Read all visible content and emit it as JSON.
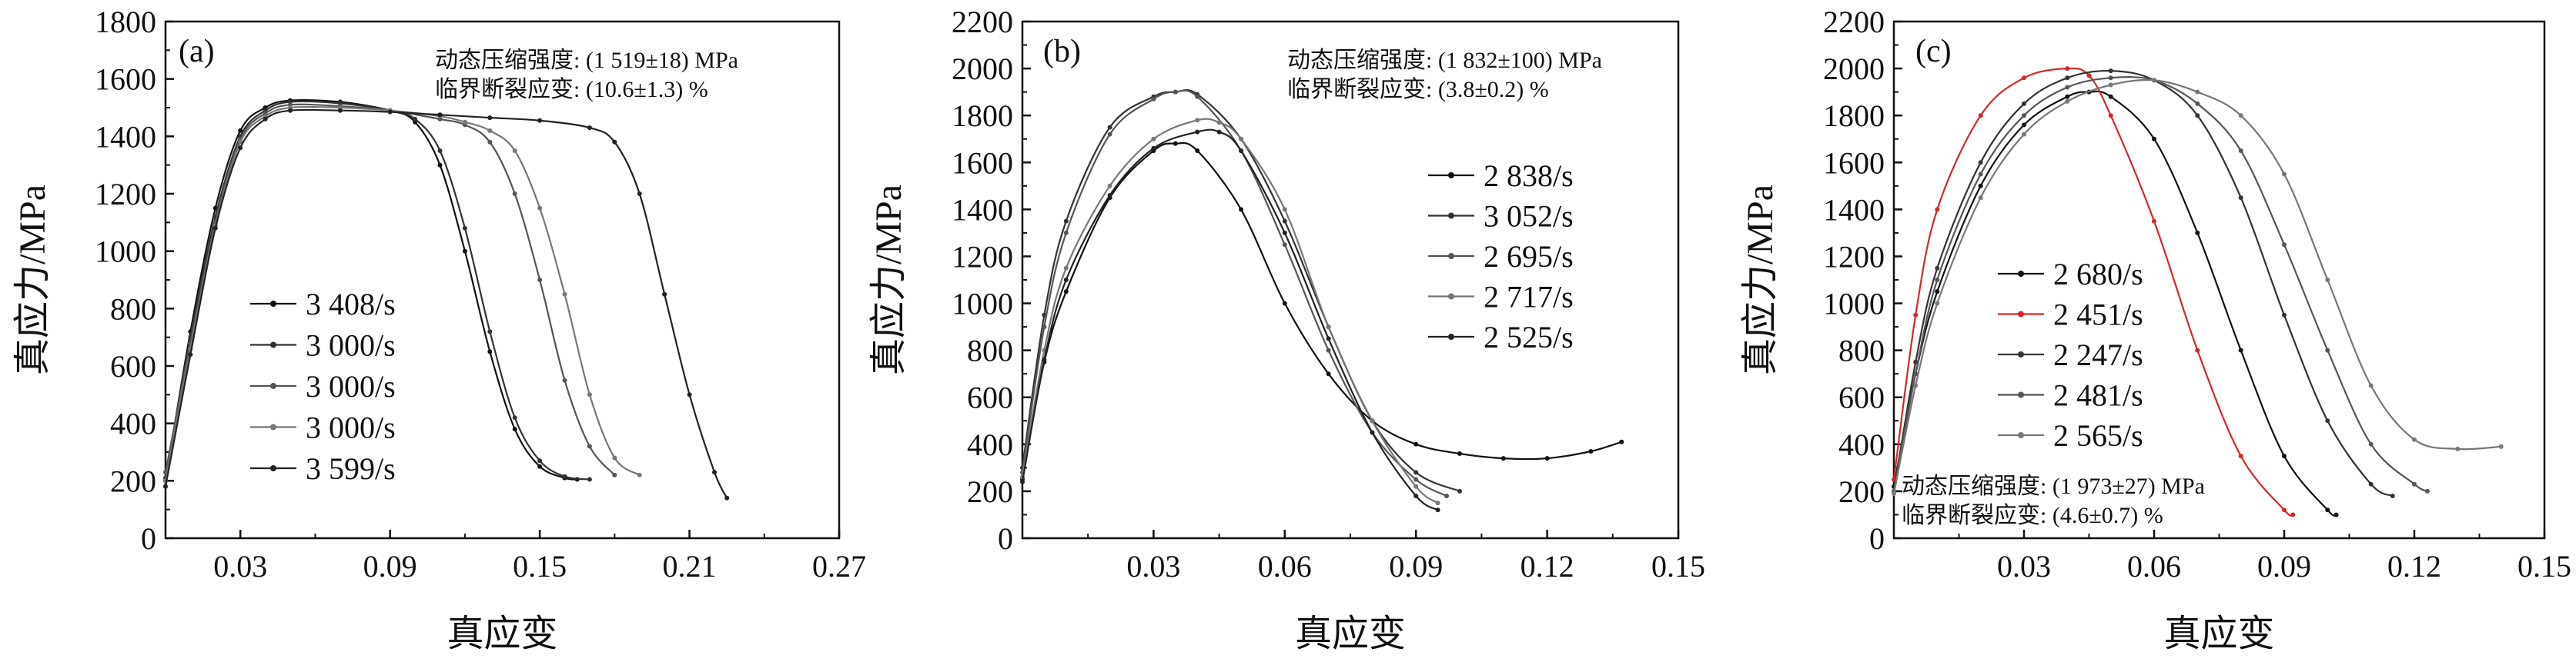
{
  "chart_data": [
    {
      "panel_label": "(a)",
      "type": "line",
      "xlabel": "真应变",
      "ylabel": "真应力/MPa",
      "xlim": [
        0.0,
        0.27
      ],
      "ylim": [
        0,
        1800
      ],
      "xticks": [
        0.03,
        0.09,
        0.15,
        0.21,
        0.27
      ],
      "xtick_labels": [
        "0.03",
        "0.09",
        "0.15",
        "0.21",
        "0.27"
      ],
      "yticks": [
        0,
        200,
        400,
        600,
        800,
        1000,
        1200,
        1400,
        1600,
        1800
      ],
      "ytick_labels": [
        "0",
        "200",
        "400",
        "600",
        "800",
        "1000",
        "1200",
        "1400",
        "1600",
        "1800"
      ],
      "annotation": [
        "动态压缩强度: (1 519±18) MPa",
        "临界断裂应变: (10.6±1.3) %"
      ],
      "legend_position": "left",
      "series": [
        {
          "name": "3 408/s",
          "color": "#111111",
          "x": [
            0.0,
            0.01,
            0.02,
            0.03,
            0.04,
            0.05,
            0.07,
            0.09,
            0.1,
            0.11,
            0.12,
            0.13,
            0.14,
            0.15,
            0.16,
            0.165
          ],
          "y": [
            200,
            720,
            1150,
            1420,
            1500,
            1525,
            1520,
            1490,
            1450,
            1300,
            1000,
            650,
            380,
            250,
            210,
            205
          ]
        },
        {
          "name": "3 000/s",
          "color": "#333333",
          "x": [
            0.0,
            0.01,
            0.02,
            0.03,
            0.04,
            0.05,
            0.07,
            0.09,
            0.1,
            0.11,
            0.12,
            0.13,
            0.14,
            0.15,
            0.16,
            0.17
          ],
          "y": [
            210,
            700,
            1120,
            1400,
            1490,
            1520,
            1515,
            1490,
            1460,
            1350,
            1080,
            720,
            420,
            270,
            215,
            205
          ]
        },
        {
          "name": "3 000/s",
          "color": "#555555",
          "x": [
            0.0,
            0.01,
            0.02,
            0.03,
            0.04,
            0.05,
            0.07,
            0.09,
            0.11,
            0.12,
            0.13,
            0.14,
            0.15,
            0.16,
            0.17,
            0.18
          ],
          "y": [
            230,
            680,
            1100,
            1390,
            1480,
            1510,
            1505,
            1490,
            1460,
            1440,
            1380,
            1200,
            900,
            550,
            320,
            220
          ]
        },
        {
          "name": "3 000/s",
          "color": "#777777",
          "x": [
            0.0,
            0.01,
            0.02,
            0.03,
            0.04,
            0.05,
            0.07,
            0.09,
            0.11,
            0.12,
            0.13,
            0.14,
            0.15,
            0.16,
            0.17,
            0.18,
            0.19
          ],
          "y": [
            200,
            660,
            1090,
            1380,
            1470,
            1500,
            1500,
            1490,
            1470,
            1450,
            1420,
            1350,
            1150,
            850,
            500,
            280,
            220
          ]
        },
        {
          "name": "3 599/s",
          "color": "#222222",
          "x": [
            0.0,
            0.01,
            0.02,
            0.03,
            0.04,
            0.05,
            0.07,
            0.09,
            0.11,
            0.13,
            0.15,
            0.17,
            0.18,
            0.19,
            0.2,
            0.21,
            0.22,
            0.225
          ],
          "y": [
            180,
            640,
            1080,
            1360,
            1460,
            1490,
            1490,
            1485,
            1475,
            1465,
            1455,
            1430,
            1380,
            1200,
            850,
            500,
            230,
            140
          ]
        }
      ]
    },
    {
      "panel_label": "(b)",
      "type": "line",
      "xlabel": "真应变",
      "ylabel": "真应力/MPa",
      "xlim": [
        0.0,
        0.15
      ],
      "ylim": [
        0,
        2200
      ],
      "xticks": [
        0.03,
        0.06,
        0.09,
        0.12,
        0.15
      ],
      "xtick_labels": [
        "0.03",
        "0.06",
        "0.09",
        "0.12",
        "0.15"
      ],
      "yticks": [
        0,
        200,
        400,
        600,
        800,
        1000,
        1200,
        1400,
        1600,
        1800,
        2000,
        2200
      ],
      "ytick_labels": [
        "0",
        "200",
        "400",
        "600",
        "800",
        "1000",
        "1200",
        "1400",
        "1600",
        "1800",
        "2000",
        "2200"
      ],
      "annotation": [
        "动态压缩强度: (1 832±100) MPa",
        "临界断裂应变: (3.8±0.2) %"
      ],
      "legend_position": "right",
      "series": [
        {
          "name": "2 838/s",
          "color": "#111111",
          "x": [
            0.0,
            0.005,
            0.01,
            0.02,
            0.03,
            0.035,
            0.04,
            0.05,
            0.06,
            0.07,
            0.08,
            0.09,
            0.1,
            0.11,
            0.12,
            0.13,
            0.137
          ],
          "y": [
            250,
            750,
            1050,
            1450,
            1650,
            1680,
            1650,
            1400,
            1000,
            700,
            500,
            400,
            360,
            340,
            340,
            370,
            410
          ]
        },
        {
          "name": "3 052/s",
          "color": "#333333",
          "x": [
            0.0,
            0.005,
            0.01,
            0.02,
            0.03,
            0.035,
            0.04,
            0.05,
            0.06,
            0.07,
            0.08,
            0.09,
            0.1
          ],
          "y": [
            300,
            950,
            1350,
            1750,
            1880,
            1900,
            1890,
            1700,
            1350,
            900,
            500,
            280,
            200
          ]
        },
        {
          "name": "2 695/s",
          "color": "#555555",
          "x": [
            0.0,
            0.005,
            0.01,
            0.02,
            0.03,
            0.035,
            0.04,
            0.05,
            0.06,
            0.07,
            0.08,
            0.09,
            0.097
          ],
          "y": [
            280,
            900,
            1300,
            1720,
            1870,
            1900,
            1880,
            1650,
            1250,
            800,
            450,
            250,
            180
          ]
        },
        {
          "name": "2 717/s",
          "color": "#777777",
          "x": [
            0.0,
            0.005,
            0.01,
            0.02,
            0.03,
            0.04,
            0.045,
            0.05,
            0.06,
            0.07,
            0.08,
            0.09,
            0.095
          ],
          "y": [
            260,
            800,
            1150,
            1500,
            1700,
            1780,
            1770,
            1700,
            1400,
            900,
            500,
            220,
            150
          ]
        },
        {
          "name": "2 525/s",
          "color": "#222222",
          "x": [
            0.0,
            0.005,
            0.01,
            0.02,
            0.03,
            0.04,
            0.045,
            0.05,
            0.06,
            0.07,
            0.08,
            0.09,
            0.095
          ],
          "y": [
            240,
            760,
            1100,
            1460,
            1660,
            1730,
            1730,
            1650,
            1300,
            850,
            450,
            180,
            120
          ]
        }
      ]
    },
    {
      "panel_label": "(c)",
      "type": "line",
      "xlabel": "真应变",
      "ylabel": "真应力/MPa",
      "xlim": [
        0.0,
        0.15
      ],
      "ylim": [
        0,
        2200
      ],
      "xticks": [
        0.03,
        0.06,
        0.09,
        0.12,
        0.15
      ],
      "xtick_labels": [
        "0.03",
        "0.06",
        "0.09",
        "0.12",
        "0.15"
      ],
      "yticks": [
        0,
        200,
        400,
        600,
        800,
        1000,
        1200,
        1400,
        1600,
        1800,
        2000,
        2200
      ],
      "ytick_labels": [
        "0",
        "200",
        "400",
        "600",
        "800",
        "1000",
        "1200",
        "1400",
        "1600",
        "1800",
        "2000",
        "2200"
      ],
      "annotation": [
        "动态压缩强度: (1 973±27) MPa",
        "临界断裂应变: (4.6±0.7) %"
      ],
      "legend_position": "center-left",
      "series": [
        {
          "name": "2 680/s",
          "color": "#111111",
          "x": [
            0.0,
            0.005,
            0.01,
            0.02,
            0.03,
            0.04,
            0.045,
            0.05,
            0.06,
            0.07,
            0.08,
            0.09,
            0.1,
            0.102
          ],
          "y": [
            220,
            700,
            1050,
            1500,
            1760,
            1880,
            1900,
            1880,
            1700,
            1300,
            800,
            350,
            120,
            100
          ]
        },
        {
          "name": "2 451/s",
          "color": "#d62728",
          "x": [
            0.0,
            0.005,
            0.01,
            0.02,
            0.03,
            0.04,
            0.045,
            0.05,
            0.06,
            0.07,
            0.08,
            0.09,
            0.092
          ],
          "y": [
            250,
            950,
            1400,
            1800,
            1960,
            2000,
            1970,
            1800,
            1350,
            800,
            350,
            120,
            100
          ]
        },
        {
          "name": "2 247/s",
          "color": "#333333",
          "x": [
            0.0,
            0.005,
            0.01,
            0.02,
            0.03,
            0.04,
            0.05,
            0.06,
            0.07,
            0.08,
            0.09,
            0.1,
            0.11,
            0.115
          ],
          "y": [
            200,
            750,
            1150,
            1600,
            1850,
            1960,
            1990,
            1950,
            1800,
            1450,
            950,
            500,
            230,
            180
          ]
        },
        {
          "name": "2 481/s",
          "color": "#555555",
          "x": [
            0.0,
            0.005,
            0.01,
            0.02,
            0.03,
            0.04,
            0.05,
            0.06,
            0.07,
            0.08,
            0.09,
            0.1,
            0.11,
            0.12,
            0.123
          ],
          "y": [
            200,
            700,
            1100,
            1550,
            1800,
            1920,
            1960,
            1950,
            1850,
            1650,
            1250,
            800,
            400,
            230,
            200
          ]
        },
        {
          "name": "2 565/s",
          "color": "#777777",
          "x": [
            0.0,
            0.005,
            0.01,
            0.02,
            0.03,
            0.04,
            0.05,
            0.06,
            0.07,
            0.08,
            0.09,
            0.1,
            0.11,
            0.12,
            0.13,
            0.14
          ],
          "y": [
            190,
            650,
            1000,
            1450,
            1720,
            1860,
            1930,
            1950,
            1900,
            1800,
            1550,
            1100,
            650,
            420,
            380,
            390
          ]
        }
      ]
    }
  ]
}
